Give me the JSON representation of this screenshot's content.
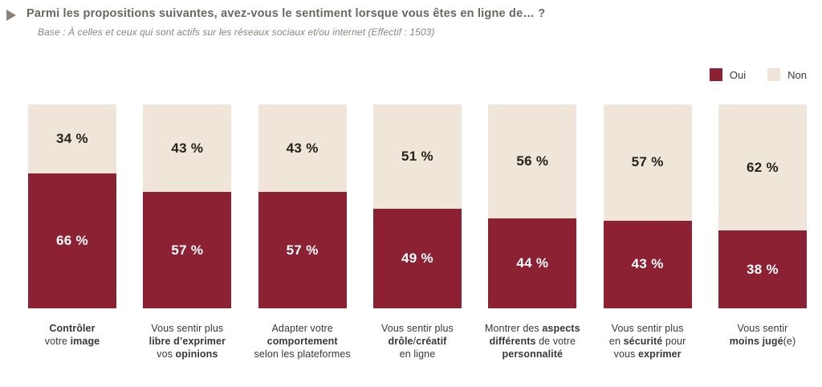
{
  "header": {
    "title": "Parmi les propositions suivantes, avez-vous le sentiment lorsque vous êtes en ligne de… ?",
    "subtitle": "Base : À celles et ceux qui sont actifs sur les réseaux sociaux et/ou internet (Effectif : 1503)",
    "bullet_icon": "triangle-right-icon"
  },
  "legend": {
    "items": [
      {
        "label": "Oui",
        "color": "#8c2133"
      },
      {
        "label": "Non",
        "color": "#efe5d8"
      }
    ]
  },
  "colors": {
    "oui": "#8c2133",
    "non": "#efe5d8",
    "title_text": "#6b6660",
    "subtitle_text": "#8b847d",
    "value_text_dark": "#26211c",
    "value_text_light": "#ffffff",
    "category_text": "#3b3733",
    "bullet": "#8c8279"
  },
  "chart_data": {
    "type": "bar",
    "stacked": true,
    "orientation": "vertical",
    "unit": "%",
    "value_suffix": " %",
    "title": "Parmi les propositions suivantes, avez-vous le sentiment lorsque vous êtes en ligne de… ?",
    "subtitle": "Base : À celles et ceux qui sont actifs sur les réseaux sociaux et/ou internet (Effectif : 1503)",
    "categories": [
      "Contrôler votre image",
      "Vous sentir plus libre d’exprimer vos opinions",
      "Adapter votre comportement selon les plateformes",
      "Vous sentir plus drôle/créatif en ligne",
      "Montrer des aspects différents de votre personnalité",
      "Vous sentir plus en sécurité pour vous exprimer",
      "Vous sentir moins jugé(e)"
    ],
    "series": [
      {
        "name": "Oui",
        "color": "#8c2133",
        "values": [
          66,
          57,
          57,
          49,
          44,
          43,
          38
        ]
      },
      {
        "name": "Non",
        "color": "#efe5d8",
        "values": [
          34,
          43,
          43,
          51,
          56,
          57,
          62
        ]
      }
    ],
    "ylim": [
      0,
      100
    ],
    "grid": false,
    "legend_position": "top-right",
    "value_labels_shown": true
  },
  "category_labels_rich": [
    [
      [
        {
          "t": "Contrôler",
          "b": true
        }
      ],
      [
        {
          "t": "votre ",
          "b": false
        },
        {
          "t": "image",
          "b": true
        }
      ]
    ],
    [
      [
        {
          "t": "Vous sentir plus",
          "b": false
        }
      ],
      [
        {
          "t": "libre d’exprimer",
          "b": true
        }
      ],
      [
        {
          "t": "vos ",
          "b": false
        },
        {
          "t": "opinions",
          "b": true
        }
      ]
    ],
    [
      [
        {
          "t": "Adapter votre",
          "b": false
        }
      ],
      [
        {
          "t": "comportement",
          "b": true
        }
      ],
      [
        {
          "t": "selon les plateformes",
          "b": false
        }
      ]
    ],
    [
      [
        {
          "t": "Vous sentir plus",
          "b": false
        }
      ],
      [
        {
          "t": "drôle",
          "b": true
        },
        {
          "t": "/",
          "b": false
        },
        {
          "t": "créatif",
          "b": true
        }
      ],
      [
        {
          "t": "en ligne",
          "b": false
        }
      ]
    ],
    [
      [
        {
          "t": "Montrer des ",
          "b": false
        },
        {
          "t": "aspects",
          "b": true
        }
      ],
      [
        {
          "t": "différents",
          "b": true
        },
        {
          "t": " de votre",
          "b": false
        }
      ],
      [
        {
          "t": "personnalité",
          "b": true
        }
      ]
    ],
    [
      [
        {
          "t": "Vous sentir plus",
          "b": false
        }
      ],
      [
        {
          "t": "en ",
          "b": false
        },
        {
          "t": "sécurité",
          "b": true
        },
        {
          "t": " pour",
          "b": false
        }
      ],
      [
        {
          "t": "vous ",
          "b": false
        },
        {
          "t": "exprimer",
          "b": true
        }
      ]
    ],
    [
      [
        {
          "t": "Vous sentir",
          "b": false
        }
      ],
      [
        {
          "t": "moins jugé",
          "b": true
        },
        {
          "t": "(e)",
          "b": false
        }
      ]
    ]
  ]
}
